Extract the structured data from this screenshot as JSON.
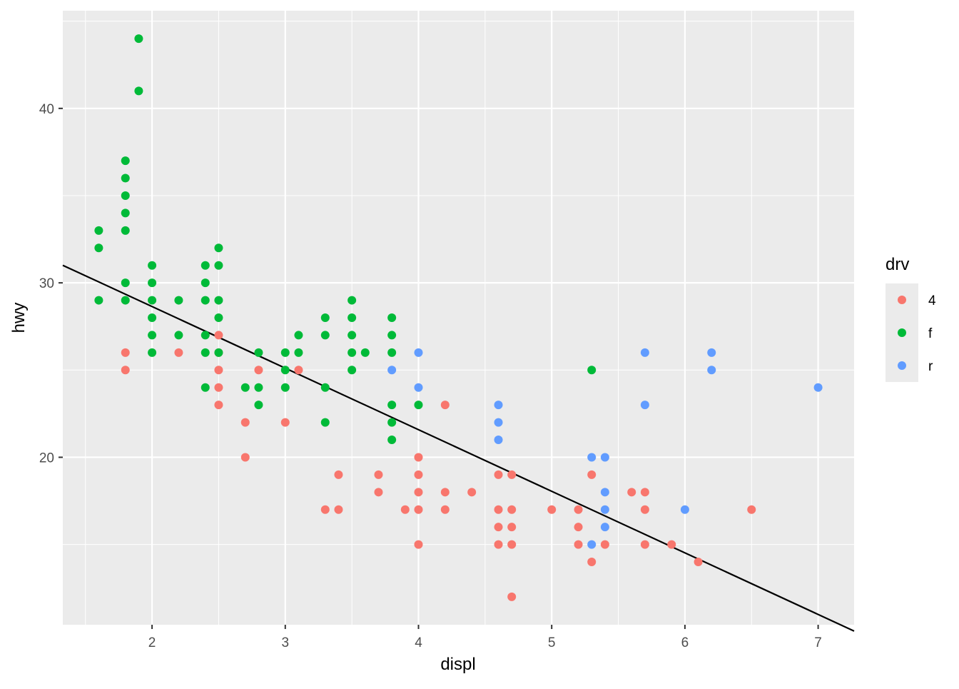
{
  "chart_data": {
    "type": "scatter",
    "title": "",
    "xlabel": "displ",
    "ylabel": "hwy",
    "xlim": [
      1.33,
      7.27
    ],
    "ylim": [
      10.4,
      45.6
    ],
    "x_ticks": [
      2,
      3,
      4,
      5,
      6,
      7
    ],
    "x_tick_labels": [
      "2",
      "3",
      "4",
      "5",
      "6",
      "7"
    ],
    "y_ticks": [
      20,
      30,
      40
    ],
    "y_tick_labels": [
      "20",
      "30",
      "40"
    ],
    "grid": true,
    "legend": {
      "title": "drv",
      "placement": "right"
    },
    "series": [
      {
        "name": "4",
        "color": "#F8766D",
        "points": [
          [
            1.8,
            26
          ],
          [
            1.8,
            25
          ],
          [
            2.2,
            26
          ],
          [
            2.5,
            27
          ],
          [
            2.5,
            26
          ],
          [
            2.5,
            25
          ],
          [
            2.5,
            24
          ],
          [
            2.5,
            23
          ],
          [
            2.7,
            22
          ],
          [
            2.7,
            20
          ],
          [
            2.8,
            25
          ],
          [
            3.0,
            22
          ],
          [
            3.1,
            25
          ],
          [
            3.3,
            17
          ],
          [
            3.4,
            19
          ],
          [
            3.4,
            17
          ],
          [
            3.7,
            19
          ],
          [
            3.7,
            18
          ],
          [
            3.9,
            17
          ],
          [
            4.0,
            20
          ],
          [
            4.0,
            19
          ],
          [
            4.0,
            18
          ],
          [
            4.0,
            17
          ],
          [
            4.0,
            15
          ],
          [
            4.2,
            23
          ],
          [
            4.2,
            18
          ],
          [
            4.2,
            17
          ],
          [
            4.4,
            18
          ],
          [
            4.6,
            19
          ],
          [
            4.6,
            17
          ],
          [
            4.6,
            16
          ],
          [
            4.6,
            15
          ],
          [
            4.7,
            19
          ],
          [
            4.7,
            17
          ],
          [
            4.7,
            16
          ],
          [
            4.7,
            15
          ],
          [
            4.7,
            12
          ],
          [
            5.0,
            17
          ],
          [
            5.2,
            17
          ],
          [
            5.2,
            16
          ],
          [
            5.2,
            15
          ],
          [
            5.3,
            19
          ],
          [
            5.3,
            14
          ],
          [
            5.4,
            15
          ],
          [
            5.6,
            18
          ],
          [
            5.7,
            18
          ],
          [
            5.7,
            17
          ],
          [
            5.7,
            15
          ],
          [
            5.9,
            15
          ],
          [
            6.1,
            14
          ],
          [
            6.5,
            17
          ]
        ]
      },
      {
        "name": "f",
        "color": "#00BA38",
        "points": [
          [
            1.6,
            33
          ],
          [
            1.6,
            32
          ],
          [
            1.6,
            29
          ],
          [
            1.8,
            37
          ],
          [
            1.8,
            36
          ],
          [
            1.8,
            35
          ],
          [
            1.8,
            34
          ],
          [
            1.8,
            33
          ],
          [
            1.8,
            30
          ],
          [
            1.8,
            29
          ],
          [
            1.9,
            44
          ],
          [
            1.9,
            41
          ],
          [
            2.0,
            31
          ],
          [
            2.0,
            30
          ],
          [
            2.0,
            29
          ],
          [
            2.0,
            28
          ],
          [
            2.0,
            27
          ],
          [
            2.0,
            26
          ],
          [
            2.2,
            29
          ],
          [
            2.2,
            27
          ],
          [
            2.4,
            31
          ],
          [
            2.4,
            30
          ],
          [
            2.4,
            29
          ],
          [
            2.4,
            27
          ],
          [
            2.4,
            26
          ],
          [
            2.4,
            24
          ],
          [
            2.5,
            32
          ],
          [
            2.5,
            31
          ],
          [
            2.5,
            29
          ],
          [
            2.5,
            28
          ],
          [
            2.5,
            26
          ],
          [
            2.7,
            24
          ],
          [
            2.8,
            26
          ],
          [
            2.8,
            24
          ],
          [
            2.8,
            23
          ],
          [
            3.0,
            26
          ],
          [
            3.0,
            25
          ],
          [
            3.0,
            24
          ],
          [
            3.1,
            27
          ],
          [
            3.1,
            26
          ],
          [
            3.3,
            28
          ],
          [
            3.3,
            27
          ],
          [
            3.3,
            24
          ],
          [
            3.3,
            22
          ],
          [
            3.5,
            29
          ],
          [
            3.5,
            28
          ],
          [
            3.5,
            27
          ],
          [
            3.5,
            26
          ],
          [
            3.5,
            25
          ],
          [
            3.6,
            26
          ],
          [
            3.8,
            28
          ],
          [
            3.8,
            27
          ],
          [
            3.8,
            26
          ],
          [
            3.8,
            23
          ],
          [
            3.8,
            22
          ],
          [
            3.8,
            21
          ],
          [
            4.0,
            23
          ],
          [
            5.3,
            25
          ]
        ]
      },
      {
        "name": "r",
        "color": "#619CFF",
        "points": [
          [
            3.8,
            25
          ],
          [
            4.0,
            26
          ],
          [
            4.0,
            24
          ],
          [
            4.6,
            23
          ],
          [
            4.6,
            22
          ],
          [
            4.6,
            21
          ],
          [
            5.3,
            20
          ],
          [
            5.3,
            15
          ],
          [
            5.4,
            20
          ],
          [
            5.4,
            18
          ],
          [
            5.4,
            17
          ],
          [
            5.4,
            16
          ],
          [
            5.7,
            26
          ],
          [
            5.7,
            23
          ],
          [
            6.0,
            17
          ],
          [
            6.2,
            26
          ],
          [
            6.2,
            25
          ],
          [
            7.0,
            24
          ]
        ]
      }
    ],
    "fit_line": {
      "color": "#000000",
      "intercept": 35.7,
      "slope": -3.53
    }
  }
}
